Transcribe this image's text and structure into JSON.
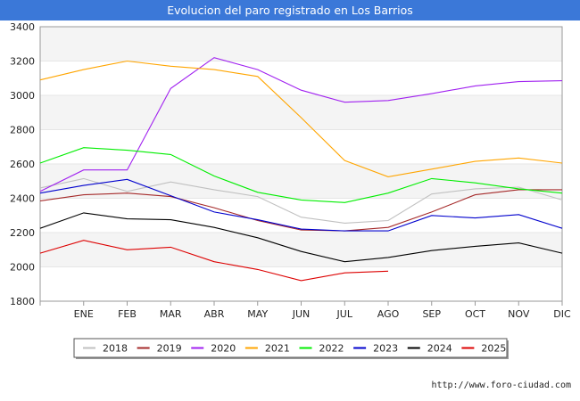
{
  "chart_data": {
    "type": "line",
    "title": "Evolucion del paro registrado en Los Barrios",
    "xlabel": "",
    "ylabel": "",
    "ylim": [
      1800,
      3400
    ],
    "yticks": [
      1800,
      2000,
      2200,
      2400,
      2600,
      2800,
      3000,
      3200,
      3400
    ],
    "categories": [
      "",
      "ENE",
      "FEB",
      "MAR",
      "ABR",
      "MAY",
      "JUN",
      "JUL",
      "AGO",
      "SEP",
      "OCT",
      "NOV",
      "DIC"
    ],
    "grid": "horizontal bands",
    "legend_position": "bottom",
    "series": [
      {
        "name": "2018",
        "color": "#c0c0c0",
        "values": [
          2460,
          2515,
          2440,
          2495,
          2450,
          2410,
          2290,
          2255,
          2270,
          2425,
          2455,
          2465,
          2390
        ]
      },
      {
        "name": "2019",
        "color": "#a52a2a",
        "values": [
          2385,
          2420,
          2430,
          2410,
          2345,
          2270,
          2215,
          2210,
          2230,
          2320,
          2420,
          2450,
          2450
        ]
      },
      {
        "name": "2020",
        "color": "#a020f0",
        "values": [
          2440,
          2565,
          2565,
          3040,
          3220,
          3150,
          3030,
          2960,
          2970,
          3010,
          3055,
          3080,
          3085
        ]
      },
      {
        "name": "2021",
        "color": "#ffa500",
        "values": [
          3090,
          3150,
          3200,
          3170,
          3150,
          3110,
          2870,
          2620,
          2525,
          2570,
          2615,
          2635,
          2605
        ]
      },
      {
        "name": "2022",
        "color": "#00ee00",
        "values": [
          2605,
          2695,
          2680,
          2655,
          2530,
          2435,
          2390,
          2375,
          2430,
          2515,
          2490,
          2455,
          2430
        ]
      },
      {
        "name": "2023",
        "color": "#0000cd",
        "values": [
          2430,
          2475,
          2510,
          2415,
          2320,
          2275,
          2220,
          2210,
          2210,
          2300,
          2285,
          2305,
          2225
        ]
      },
      {
        "name": "2024",
        "color": "#000000",
        "values": [
          2225,
          2315,
          2280,
          2275,
          2230,
          2170,
          2090,
          2030,
          2055,
          2095,
          2120,
          2140,
          2080
        ]
      },
      {
        "name": "2025",
        "color": "#dd0000",
        "values": [
          2080,
          2155,
          2100,
          2115,
          2030,
          1985,
          1920,
          1965,
          1975,
          null,
          null,
          null,
          null
        ]
      }
    ]
  },
  "footer": {
    "source": "http://www.foro-ciudad.com"
  }
}
